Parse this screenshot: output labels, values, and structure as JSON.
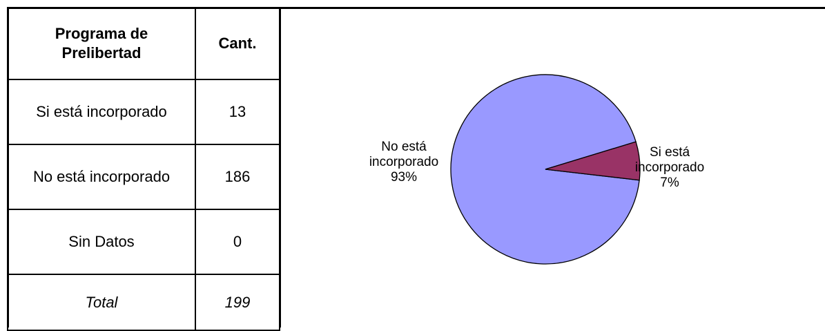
{
  "table": {
    "headers": [
      "Programa de Prelibertad",
      "Cant."
    ],
    "rows": [
      {
        "label": "Si está incorporado",
        "value": "13"
      },
      {
        "label": "No está incorporado",
        "value": "186"
      },
      {
        "label": "Sin Datos",
        "value": "0"
      }
    ],
    "total": {
      "label": "Total",
      "value": "199"
    }
  },
  "chart_data": {
    "type": "pie",
    "title": "",
    "slices": [
      {
        "name": "No está incorporado",
        "value": 186,
        "percent": "93%",
        "color": "#9999ff",
        "label_lines": [
          "No está",
          "incorporado",
          "93%"
        ]
      },
      {
        "name": "Si está incorporado",
        "value": 13,
        "percent": "7%",
        "color": "#993366",
        "label_lines": [
          "Si está",
          "incorporado",
          "7%"
        ]
      }
    ],
    "legend": "none"
  }
}
